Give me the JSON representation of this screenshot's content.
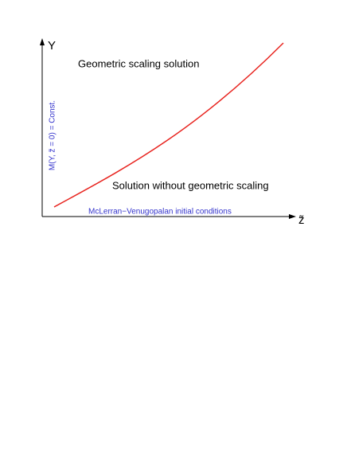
{
  "axes": {
    "y_label": "Y",
    "x_label": "z̃"
  },
  "regions": {
    "upper": "Geometric scaling solution",
    "lower": "Solution without geometric scaling"
  },
  "annotations": {
    "boundary": "M(Y, z̃ = 0) = Const.",
    "initial": "McLerran−Venugopalan initial  conditions"
  }
}
